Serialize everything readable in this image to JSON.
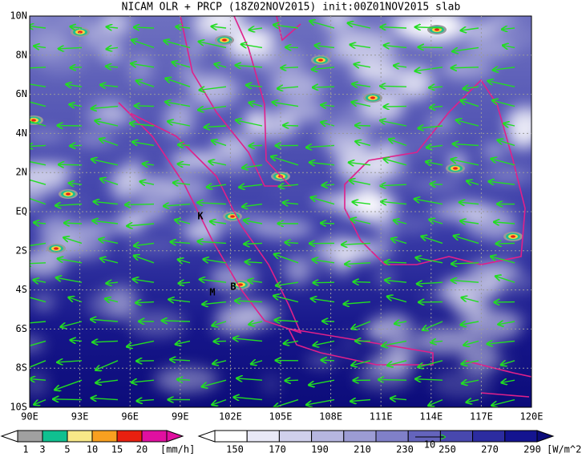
{
  "title": "NICAM OLR + PRCP (18Z02NOV2015) init:00Z01NOV2015 slab",
  "lon_labels": [
    "90E",
    "93E",
    "96E",
    "99E",
    "102E",
    "105E",
    "108E",
    "111E",
    "114E",
    "117E",
    "120E"
  ],
  "lat_labels": [
    "10N",
    "8N",
    "6N",
    "4N",
    "2N",
    "EQ",
    "2S",
    "4S",
    "6S",
    "8S",
    "10S"
  ],
  "stations": [
    "K",
    "M",
    "B"
  ],
  "vector_reference": "10",
  "precip_legend": {
    "ticks": [
      1,
      3,
      5,
      10,
      15,
      20
    ],
    "unit": "[mm/h]"
  },
  "olr_legend": {
    "ticks": [
      150,
      170,
      190,
      210,
      230,
      250,
      270,
      290
    ],
    "unit": "[W/m^2]"
  }
}
